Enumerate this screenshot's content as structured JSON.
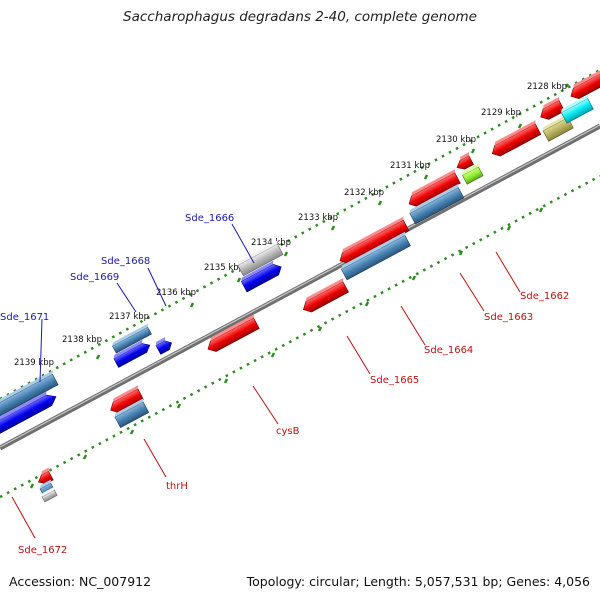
{
  "title": "Saccharophagus degradans 2-40, complete genome",
  "footer": {
    "accession": "Accession: NC_007912",
    "topology": "Topology: circular; Length: 5,057,531 bp; Genes: 4,056"
  },
  "ticks": [
    "2128 kbp",
    "2129 kbp",
    "2130 kbp",
    "2131 kbp",
    "2132 kbp",
    "2133 kbp",
    "2134 kbp",
    "2135 kbp",
    "2136 kbp",
    "2137 kbp",
    "2138 kbp",
    "2139 kbp"
  ],
  "gene_labels": {
    "top": [
      "Sde_1666",
      "Sde_1668",
      "Sde_1669",
      "Sde_1671"
    ],
    "bottom": [
      "Sde_1662",
      "Sde_1663",
      "Sde_1664",
      "Sde_1665",
      "cysB",
      "thrH",
      "Sde_1672"
    ]
  },
  "colors": {
    "cds_forward": "#0000ee",
    "cds_reverse": "#ee0000",
    "gene_steel": "#4682b4",
    "gene_grey": "#b8b8b8",
    "gene_olive": "#b8b060",
    "gene_lime": "#90ee30",
    "gene_cyan": "#00e8f0",
    "ruler": "#2e8b22",
    "backbone": "#888888",
    "label_top": "#1a1ab0",
    "label_bottom": "#c01010"
  }
}
